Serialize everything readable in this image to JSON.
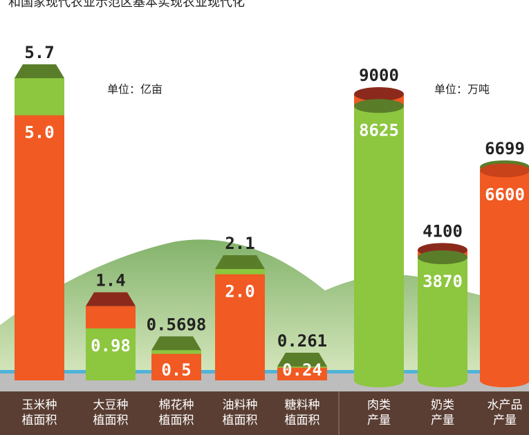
{
  "title": "和国家现代农业示范区基本实现农业现代化",
  "chart_data": [
    {
      "type": "bar",
      "unit": "单位：亿亩",
      "categories": [
        [
          "玉米种",
          "植面积"
        ],
        [
          "大豆种",
          "植面积"
        ],
        [
          "棉花种",
          "植面积"
        ],
        [
          "油料种",
          "植面积"
        ],
        [
          "糖料种",
          "植面积"
        ]
      ],
      "series": [
        {
          "values": [
            5.0,
            0.98,
            0.5,
            2.0,
            0.24
          ],
          "value_labels": [
            "5.0",
            "0.98",
            "0.5",
            "2.0",
            "0.24"
          ],
          "colors": [
            "#f15a22",
            "#8dc63f",
            "#f15a22",
            "#f15a22",
            "#f15a22"
          ]
        },
        {
          "values": [
            5.7,
            1.4,
            0.5698,
            2.1,
            0.261
          ],
          "value_labels": [
            "5.7",
            "1.4",
            "0.5698",
            "2.1",
            "0.261"
          ],
          "colors": [
            "#8dc63f",
            "#f15a22",
            "#8dc63f",
            "#8dc63f",
            "#8dc63f"
          ],
          "cap_colors": [
            "#5a7d2a",
            "#8b2a1c",
            "#5a7d2a",
            "#5a7d2a",
            "#5a7d2a"
          ]
        }
      ],
      "ylim": [
        0,
        6
      ]
    },
    {
      "type": "cylinder",
      "unit": "单位：万吨",
      "categories": [
        [
          "肉类",
          "产量"
        ],
        [
          "奶类",
          "产量"
        ],
        [
          "水产品",
          "产量"
        ]
      ],
      "series": [
        {
          "values": [
            8625,
            3870,
            6600
          ],
          "colors": [
            "#8dc63f",
            "#8dc63f",
            "#f15a22"
          ]
        },
        {
          "values": [
            9000,
            4100,
            6699
          ],
          "colors": [
            "#f15a22",
            "#f15a22",
            "#8dc63f"
          ],
          "cap_colors": [
            "#8b2a1c",
            "#8b2a1c",
            "#5a7d2a"
          ]
        }
      ],
      "ylim": [
        0,
        10000
      ]
    }
  ]
}
